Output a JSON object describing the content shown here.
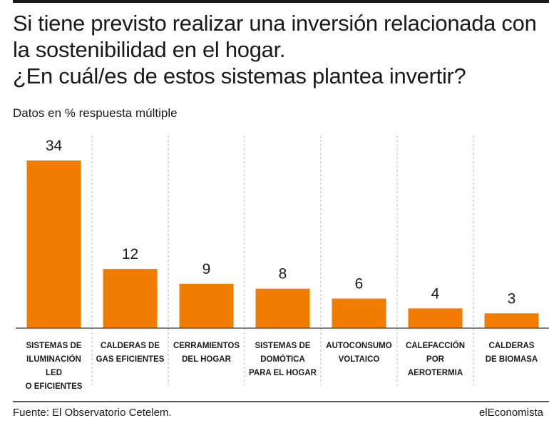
{
  "header": {
    "title_lines": [
      "Si tiene previsto realizar una inversión relacionada con",
      "la sostenibilidad en el hogar.",
      "¿En cuál/es de estos sistemas plantea invertir?"
    ],
    "subtitle": "Datos en % respuesta múltiple"
  },
  "footer": {
    "source": "Fuente: El Observatorio Cetelem.",
    "brand": "elEconomista"
  },
  "colors": {
    "bar": "#f07d00",
    "text": "#1a1a1a",
    "grid": "#b5b5b5"
  },
  "chart_data": {
    "type": "bar",
    "title": "¿En cuál/es de estos sistemas plantea invertir?",
    "ylabel": "",
    "xlabel": "",
    "grid": "vertical dashed separators",
    "legend": "none",
    "ylim": [
      0,
      34
    ],
    "categories": [
      [
        "SISTEMAS DE",
        "ILUMINACIÓN",
        "LED",
        "O EFICIENTES"
      ],
      [
        "CALDERAS DE",
        "GAS EFICIENTES"
      ],
      [
        "CERRAMIENTOS",
        "DEL HOGAR"
      ],
      [
        "SISTEMAS DE",
        "DOMÓTICA",
        "PARA EL HOGAR"
      ],
      [
        "AUTOCONSUMO",
        "VOLTAICO"
      ],
      [
        "CALEFACCIÓN",
        "POR",
        "AEROTERMIA"
      ],
      [
        "CALDERAS",
        "DE BIOMASA"
      ]
    ],
    "values": [
      34,
      12,
      9,
      8,
      6,
      4,
      3
    ]
  }
}
